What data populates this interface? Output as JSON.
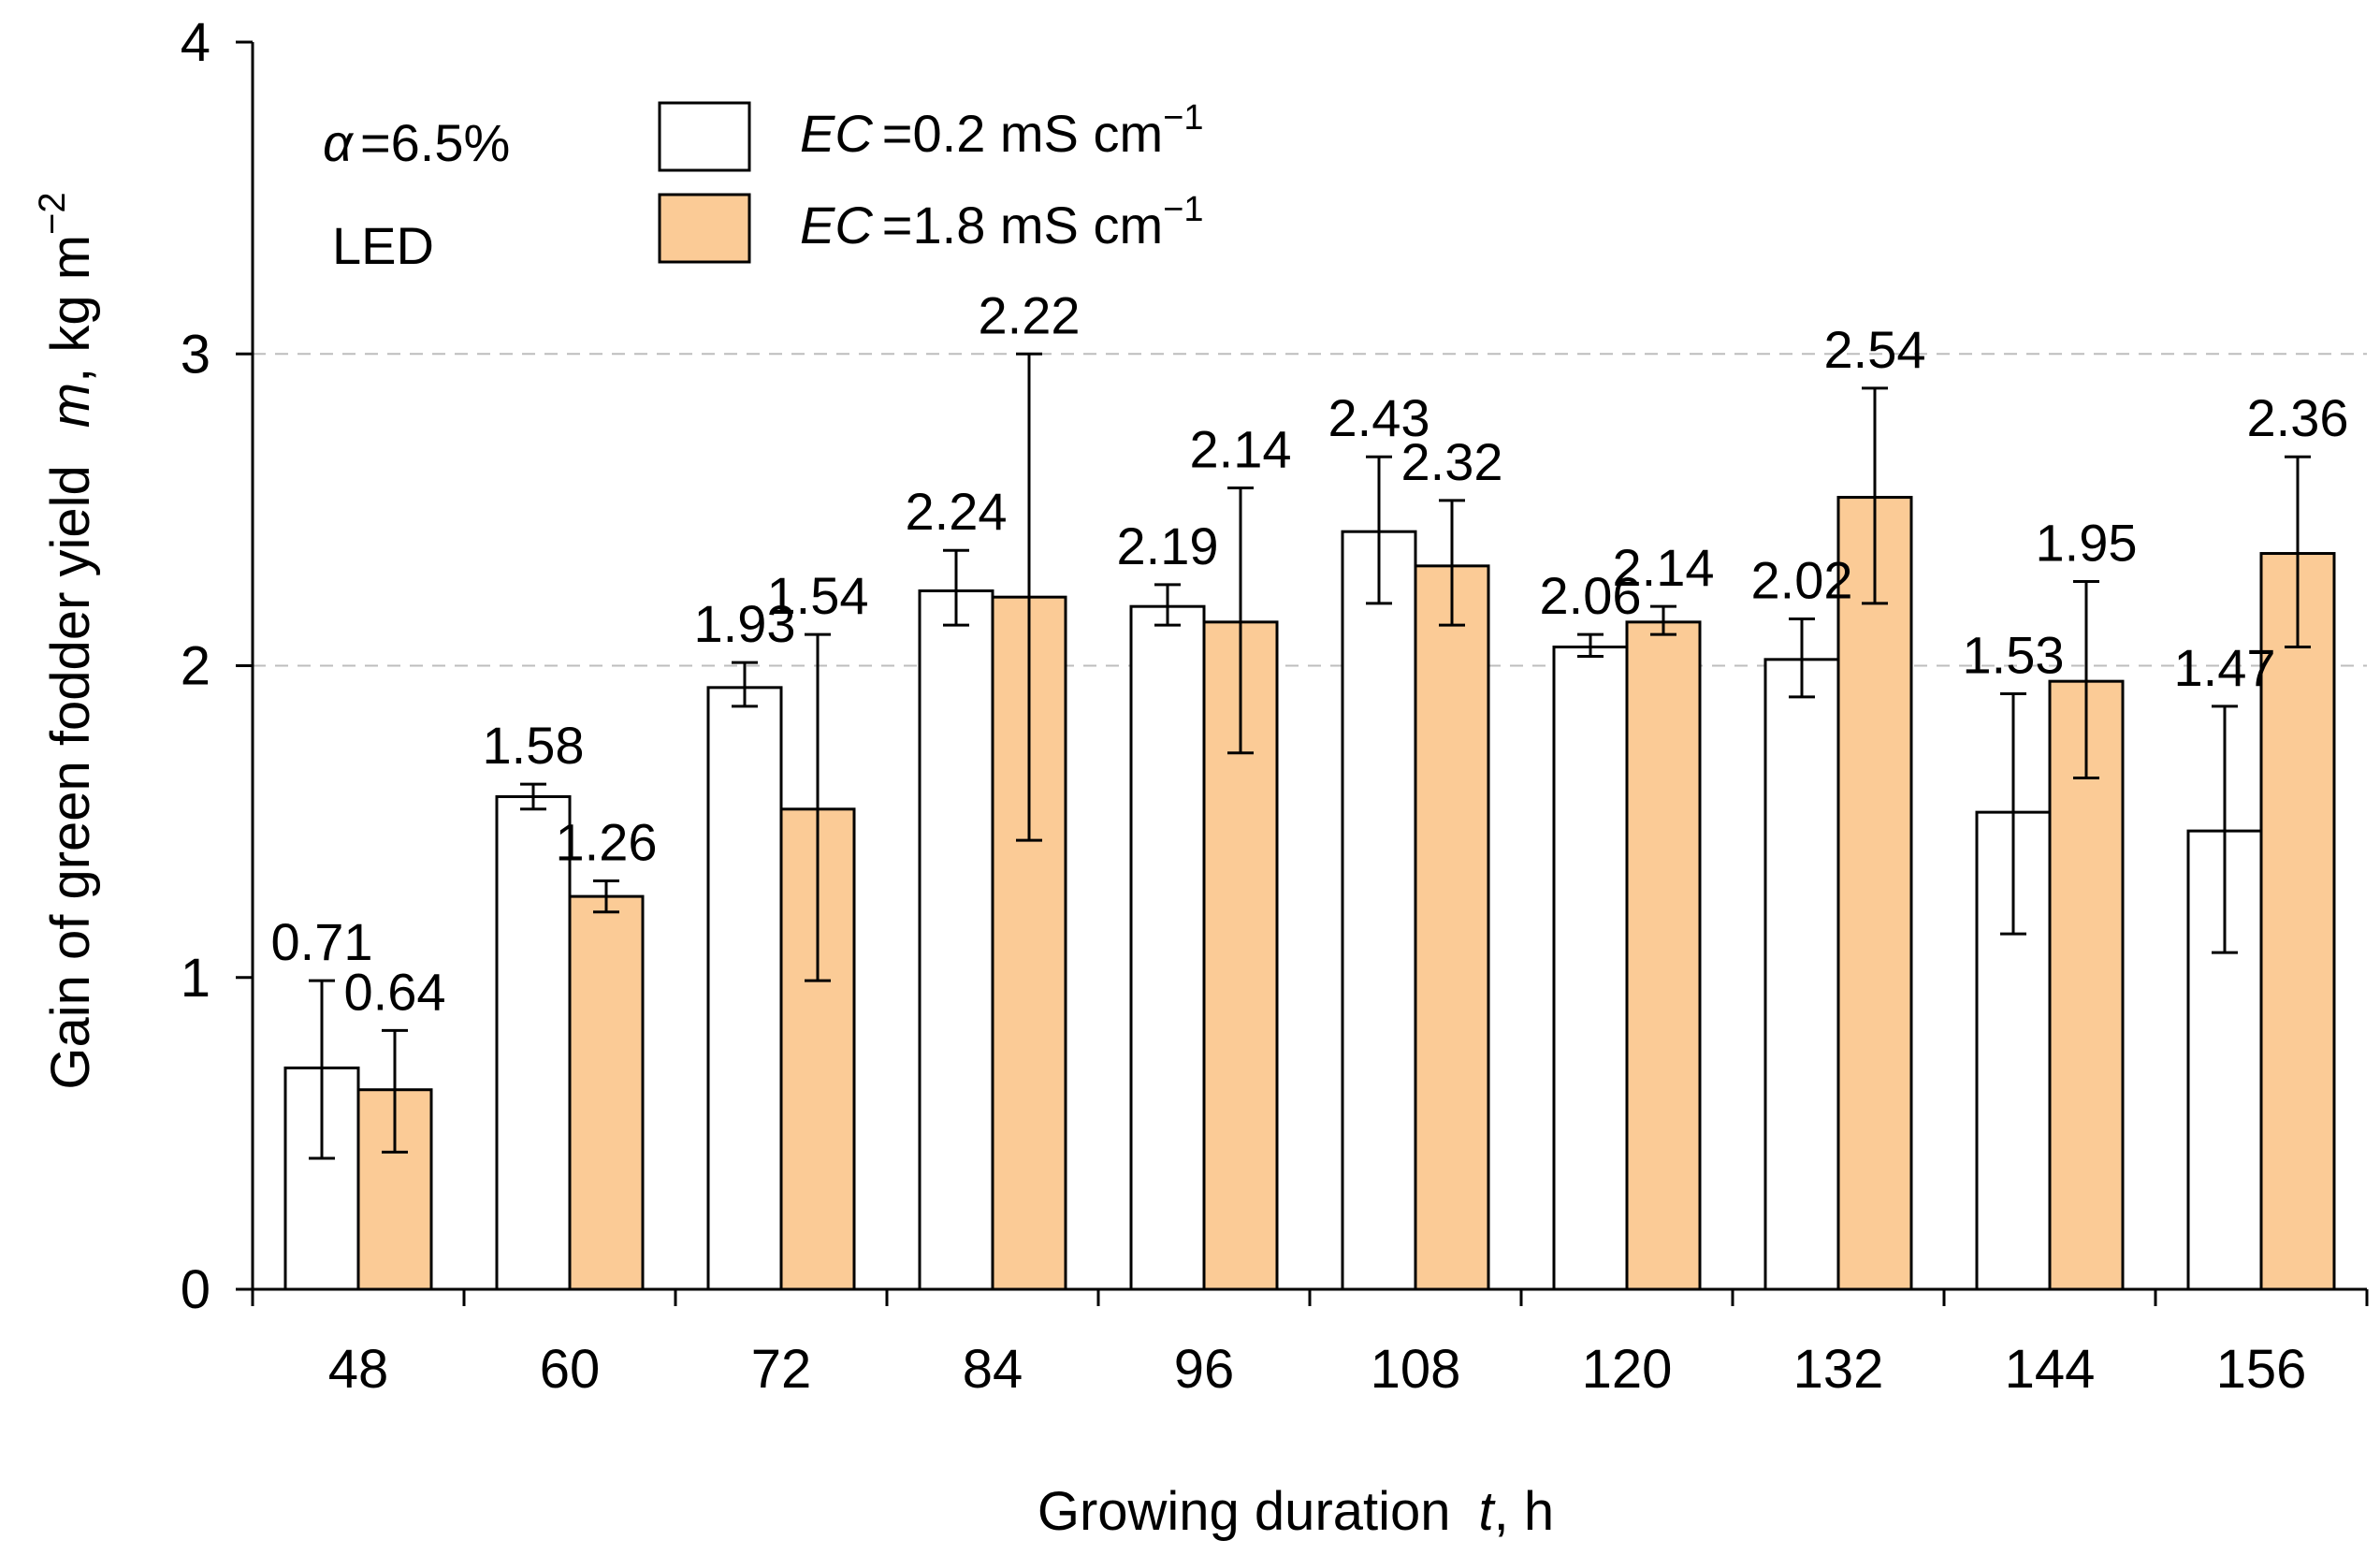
{
  "chart_data": {
    "type": "bar",
    "categories": [
      "48",
      "60",
      "72",
      "84",
      "96",
      "108",
      "120",
      "132",
      "144",
      "156"
    ],
    "series": [
      {
        "name": "EC =0.2 mS cm⁻¹",
        "legend_var": "EC",
        "legend_rest": "=0.2 mS cm",
        "legend_sup": "−1",
        "color": "#ffffff",
        "values": [
          0.71,
          1.58,
          1.93,
          2.24,
          2.19,
          2.43,
          2.06,
          2.02,
          1.53,
          1.47
        ],
        "value_labels": [
          "0.71",
          "1.58",
          "1.93",
          "2.24",
          "2.19",
          "2.43",
          "2.06",
          "2.02",
          "1.53",
          "1.47"
        ],
        "err_low": [
          0.42,
          1.54,
          1.87,
          2.13,
          2.13,
          2.2,
          2.03,
          1.9,
          1.14,
          1.08
        ],
        "err_high": [
          0.99,
          1.62,
          2.01,
          2.37,
          2.26,
          2.67,
          2.1,
          2.15,
          1.91,
          1.87
        ]
      },
      {
        "name": "EC =1.8 mS cm⁻¹",
        "legend_var": "EC",
        "legend_rest": "=1.8 mS cm",
        "legend_sup": "−1",
        "color": "#fbcb96",
        "values": [
          0.64,
          1.26,
          1.54,
          2.22,
          2.14,
          2.32,
          2.14,
          2.54,
          1.95,
          2.36
        ],
        "value_labels": [
          "0.64",
          "1.26",
          "1.54",
          "2.22",
          "2.14",
          "2.32",
          "2.14",
          "2.54",
          "1.95",
          "2.36"
        ],
        "err_low": [
          0.44,
          1.21,
          0.99,
          1.44,
          1.72,
          2.13,
          2.1,
          2.2,
          1.64,
          2.06
        ],
        "err_high": [
          0.83,
          1.31,
          2.1,
          3.0,
          2.57,
          2.53,
          2.19,
          2.89,
          2.27,
          2.67
        ]
      }
    ],
    "y_ticks": [
      "0",
      "1",
      "2",
      "3",
      "4"
    ],
    "ylim": [
      0,
      4
    ],
    "grid": "dashed horizontal at 2 and 3",
    "xlabel": {
      "main": "Growing duration",
      "var": "t",
      "unit": ", h"
    },
    "ylabel": {
      "main": "Gain of green fodder yield",
      "var": "m",
      "unit": ", kg m",
      "sup": "−2"
    },
    "annotations": {
      "alpha_symbol": "α",
      "alpha_text": "=6.5%",
      "light": "LED"
    },
    "legend_position": "top-left"
  }
}
